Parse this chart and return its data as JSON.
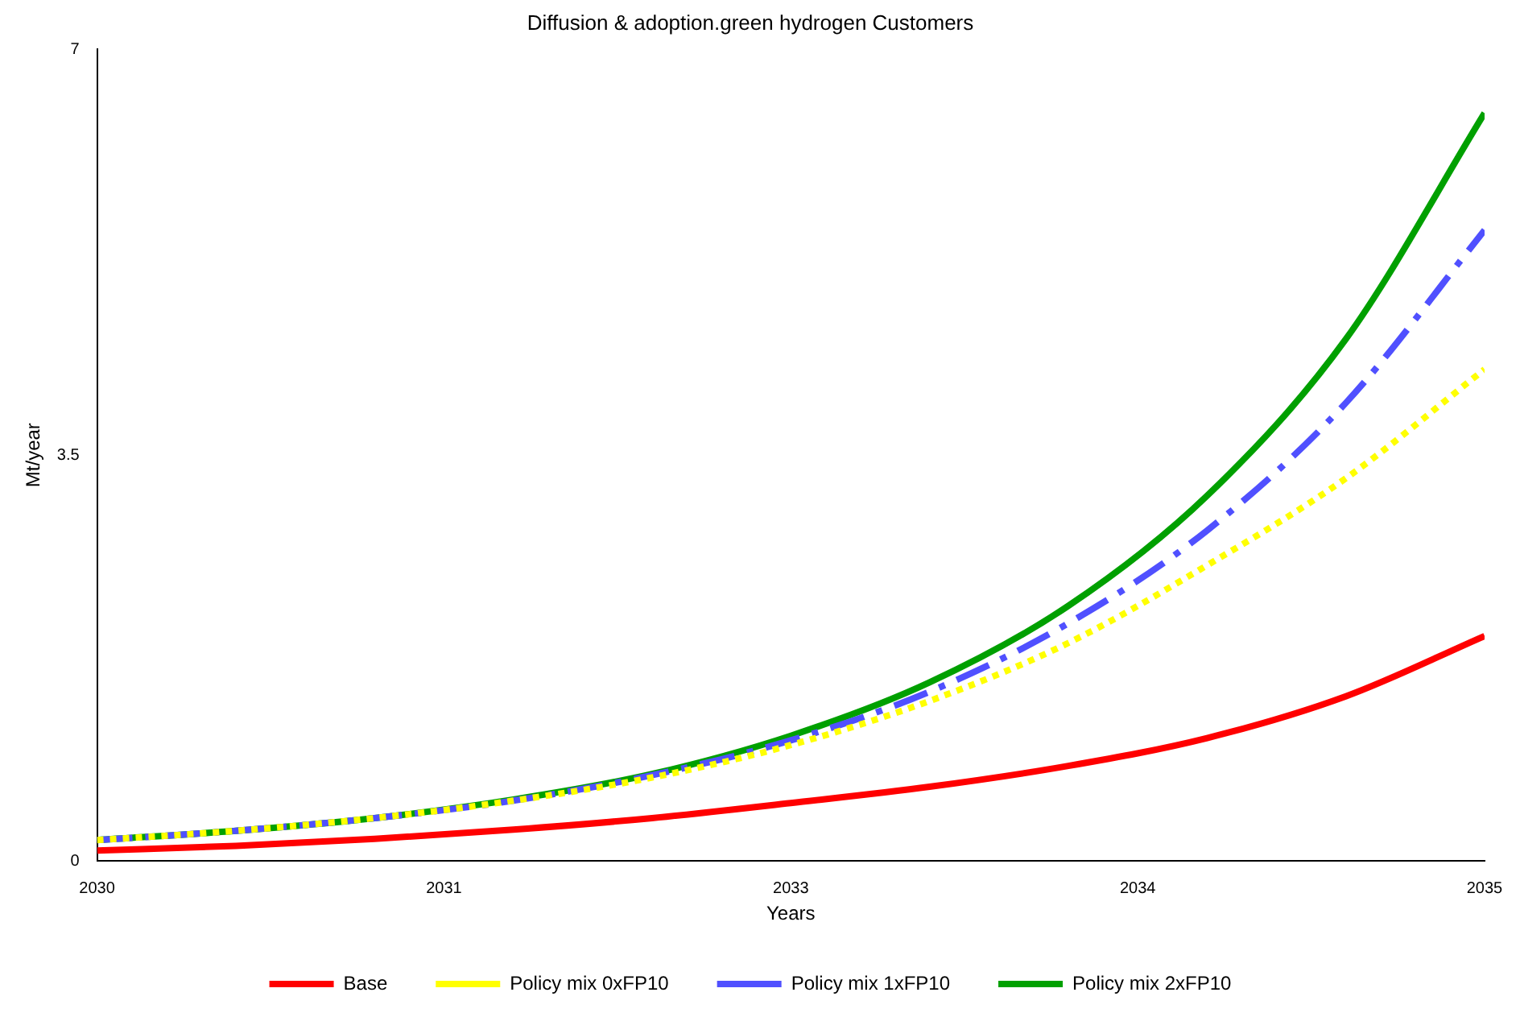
{
  "chart_data": {
    "type": "line",
    "title": "Diffusion & adoption.green hydrogen Customers",
    "xlabel": "Years",
    "ylabel": "Mt/year",
    "x": [
      2030,
      2030.5,
      2031,
      2031.5,
      2032,
      2032.5,
      2033,
      2033.5,
      2034,
      2034.5,
      2035
    ],
    "xlim": [
      2030,
      2035
    ],
    "xticks": [
      2030,
      {
        "value": 2031.25,
        "label": "2031"
      },
      {
        "value": 2033.75,
        "label": "2034"
      },
      {
        "value": 2032.5,
        "label": "2033"
      },
      2035
    ],
    "ylim": [
      0,
      7
    ],
    "yticks": [
      0,
      3.5,
      7
    ],
    "grid": false,
    "legend": "bottom",
    "marker": "none",
    "series": [
      {
        "name": "Base",
        "color": "#ff0000",
        "line_style": "solid",
        "values": [
          0.09,
          0.13,
          0.19,
          0.27,
          0.37,
          0.5,
          0.64,
          0.82,
          1.06,
          1.42,
          1.94
        ]
      },
      {
        "name": "Policy mix 0xFP10",
        "color": "#ffff00",
        "line_style": "dotted",
        "values": [
          0.18,
          0.26,
          0.37,
          0.52,
          0.72,
          1.0,
          1.38,
          1.88,
          2.55,
          3.3,
          4.24
        ]
      },
      {
        "name": "Policy mix 1xFP10",
        "color": "#5050ff",
        "line_style": "dashed",
        "values": [
          0.18,
          0.26,
          0.37,
          0.52,
          0.74,
          1.04,
          1.46,
          2.05,
          2.85,
          3.95,
          5.44
        ]
      },
      {
        "name": "Policy mix 2xFP10",
        "color": "#00a000",
        "line_style": "solid",
        "values": [
          0.18,
          0.26,
          0.37,
          0.53,
          0.75,
          1.08,
          1.54,
          2.2,
          3.15,
          4.5,
          6.45
        ]
      }
    ]
  }
}
